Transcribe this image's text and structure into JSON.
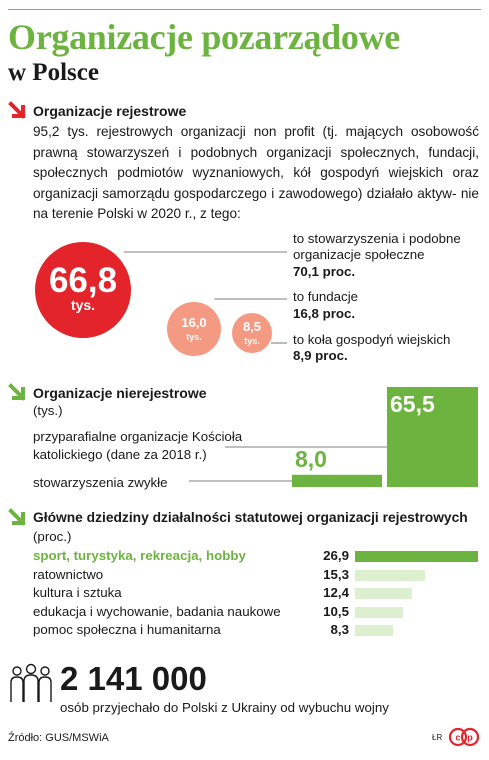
{
  "header": {
    "title": "Organizacje pozarządowe",
    "subtitle": "w Polsce"
  },
  "colors": {
    "green": "#6db33f",
    "light_green": "#dcefcf",
    "red": "#e3242b",
    "salmon": "#f59a82",
    "arrow_red": "#e3242b",
    "arrow_green": "#6db33f"
  },
  "icons": {
    "section1": "arrow-down-right-icon",
    "section2": "arrow-down-right-icon",
    "section3": "arrow-down-right-icon",
    "people": "people-group-icon",
    "logo": "cp-logo-icon"
  },
  "registered": {
    "heading": "Organizacje rejestrowe",
    "text": "95,2 tys. rejestrowych organizacji non profit (tj. mających osobowość prawną stowarzyszeń i podobnych organizacji społecznych, fundacji, społecznych podmiotów wyznaniowych, kół gospodyń wiejskich oraz organizacji samorządu gospodarczego i zawodowego) działało aktyw- nie na terenie Polski w 2020 r., z tego:",
    "labels": [
      {
        "line1": "to stowarzyszenia i podobne",
        "line2": "organizacje społeczne",
        "value": "70,1 proc."
      },
      {
        "line1": "to fundacje",
        "line2": "",
        "value": "16,8 proc."
      },
      {
        "line1": "to koła gospodyń wiejskich",
        "line2": "",
        "value": "8,9 proc."
      }
    ]
  },
  "unregistered": {
    "heading": "Organizacje nierejestrowe",
    "unit": "(tys.)",
    "label1_line1": "przyparafialne organizacje Kościoła",
    "label1_line2": "katolickiego (dane za 2018 r.)",
    "label2": "stowarzyszenia zwykłe"
  },
  "domains": {
    "heading": "Główne dziedziny działalności statutowej organizacji rejestrowych",
    "unit": "(proc.)"
  },
  "ukraine": {
    "number": "2 141 000",
    "text": "osób przyjechało do Polski z Ukrainy od wybuchu wojny"
  },
  "footer": {
    "source": "Źródło: GUS/MSWiA",
    "author": "ŁR"
  },
  "chart_data": [
    {
      "type": "bubble",
      "categories": [
        "stowarzyszenia i podobne organizacje społeczne",
        "fundacje",
        "koła gospodyń wiejskich"
      ],
      "values": [
        66.8,
        16.0,
        8.5
      ],
      "value_labels": [
        "66,8",
        "16,0",
        "8,5"
      ],
      "unit_label": "tys."
    },
    {
      "type": "bar",
      "categories": [
        "przyparafialne organizacje Kościoła katolickiego (dane za 2018 r.)",
        "stowarzyszenia zwykłe"
      ],
      "values": [
        65.5,
        8.0
      ],
      "value_labels": [
        "65,5",
        "8,0"
      ],
      "unit": "tys."
    },
    {
      "type": "bar",
      "orientation": "horizontal",
      "categories": [
        "sport, turystyka, rekreacja, hobby",
        "ratownictwo",
        "kultura i sztuka",
        "edukacja i wychowanie, badania naukowe",
        "pomoc społeczna i humanitarna"
      ],
      "values": [
        26.9,
        15.3,
        12.4,
        10.5,
        8.3
      ],
      "value_labels": [
        "26,9",
        "15,3",
        "12,4",
        "10,5",
        "8,3"
      ],
      "unit": "proc."
    }
  ]
}
